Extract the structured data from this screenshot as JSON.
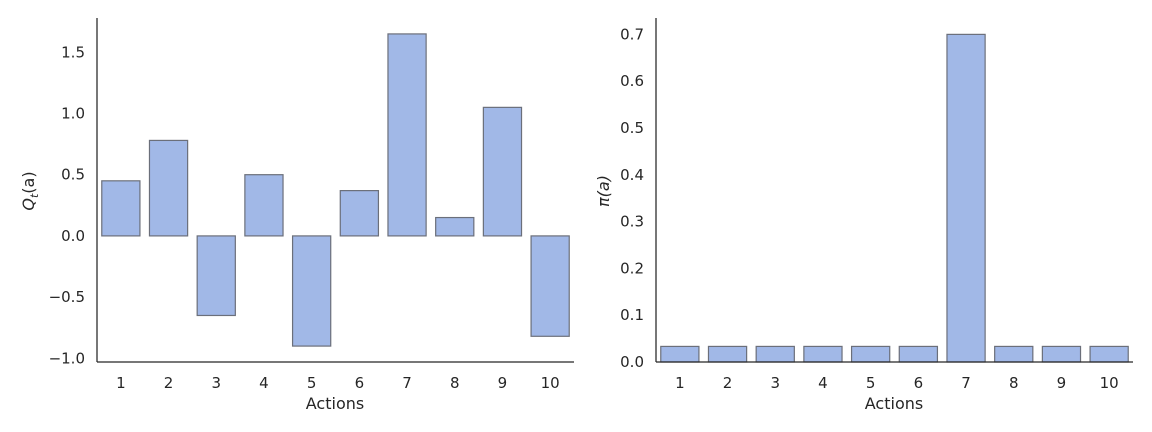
{
  "colors": {
    "bar_fill": "#a1b8e7",
    "bar_edge": "#6b6f7a",
    "axis": "#262626"
  },
  "chart_data": [
    {
      "type": "bar",
      "categories": [
        "1",
        "2",
        "3",
        "4",
        "5",
        "6",
        "7",
        "8",
        "9",
        "10"
      ],
      "values": [
        0.45,
        0.78,
        -0.65,
        0.5,
        -0.9,
        0.37,
        1.65,
        0.15,
        1.05,
        -0.82
      ],
      "ylim": [
        -1.03,
        1.78
      ],
      "yticks": [
        -1.0,
        -0.5,
        0.0,
        0.5,
        1.0,
        1.5
      ],
      "ytick_labels": [
        "−1.0",
        "−0.5",
        "0.0",
        "0.5",
        "1.0",
        "1.5"
      ],
      "xlabel": "Actions",
      "ylabel_main": "Q",
      "ylabel_sub": "t",
      "ylabel_tail": "(a)",
      "grid": false
    },
    {
      "type": "bar",
      "categories": [
        "1",
        "2",
        "3",
        "4",
        "5",
        "6",
        "7",
        "8",
        "9",
        "10"
      ],
      "values": [
        0.0333,
        0.0333,
        0.0333,
        0.0333,
        0.0333,
        0.0333,
        0.7,
        0.0333,
        0.0333,
        0.0333
      ],
      "ylim": [
        0,
        0.735
      ],
      "yticks": [
        0.0,
        0.1,
        0.2,
        0.3,
        0.4,
        0.5,
        0.6,
        0.7
      ],
      "ytick_labels": [
        "0.0",
        "0.1",
        "0.2",
        "0.3",
        "0.4",
        "0.5",
        "0.6",
        "0.7"
      ],
      "xlabel": "Actions",
      "ylabel": "π(a)",
      "grid": false
    }
  ]
}
